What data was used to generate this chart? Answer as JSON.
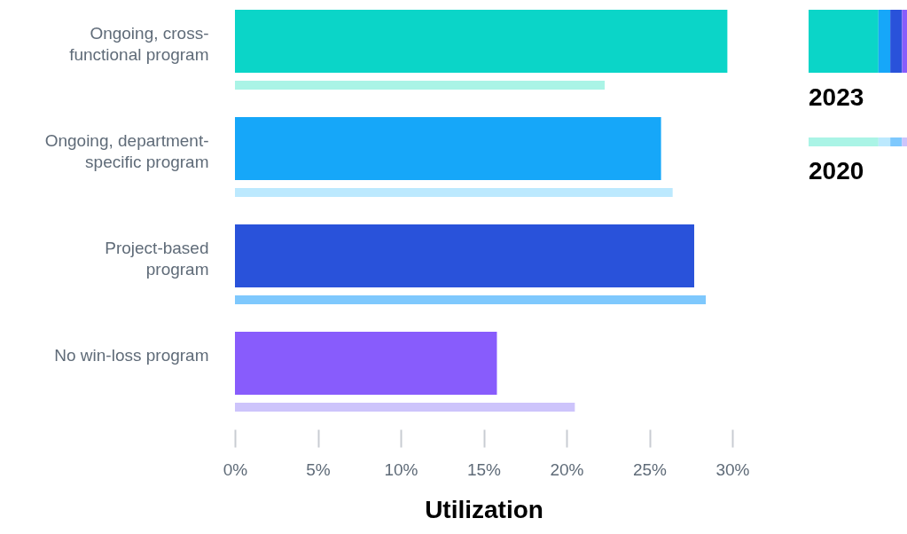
{
  "chart_data": {
    "type": "bar",
    "orientation": "horizontal",
    "xlabel": "Utilization",
    "categories": [
      "Ongoing, cross-\nfunctional program",
      "Ongoing, department-\nspecific program",
      "Project-based\nprogram",
      "No win-loss program"
    ],
    "series": [
      {
        "name": "2023",
        "colors": [
          "#0bd5c8",
          "#16a7f9",
          "#2952da",
          "#885cfc"
        ],
        "values": [
          29.7,
          25.7,
          27.7,
          15.8
        ]
      },
      {
        "name": "2020",
        "colors": [
          "#aaf4e6",
          "#bce9fe",
          "#7ec8fd",
          "#cdc4fb"
        ],
        "values": [
          22.3,
          26.4,
          28.4,
          20.5
        ]
      }
    ],
    "xlim": [
      0,
      30
    ],
    "xticks": [
      {
        "value": 0,
        "label": "0%"
      },
      {
        "value": 5,
        "label": "5%"
      },
      {
        "value": 10,
        "label": "10%"
      },
      {
        "value": 15,
        "label": "15%"
      },
      {
        "value": 20,
        "label": "20%"
      },
      {
        "value": 25,
        "label": "25%"
      },
      {
        "value": 30,
        "label": "30%"
      }
    ],
    "grid": false,
    "legend": "top right"
  }
}
